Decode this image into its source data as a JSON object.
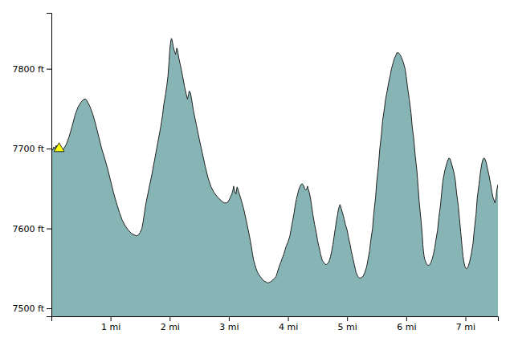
{
  "chart_data": {
    "type": "area",
    "xlim": [
      0,
      7.55
    ],
    "ylim": [
      7490,
      7870
    ],
    "xticks": [
      {
        "value": 1,
        "label": "1 mi"
      },
      {
        "value": 2,
        "label": "2 mi"
      },
      {
        "value": 3,
        "label": "3 mi"
      },
      {
        "value": 4,
        "label": "4 mi"
      },
      {
        "value": 5,
        "label": "5 mi"
      },
      {
        "value": 6,
        "label": "6 mi"
      },
      {
        "value": 7,
        "label": "7 mi"
      }
    ],
    "yticks": [
      {
        "value": 7500,
        "label": "7500 ft"
      },
      {
        "value": 7600,
        "label": "7600 ft"
      },
      {
        "value": 7700,
        "label": "7700 ft"
      },
      {
        "value": 7800,
        "label": "7800 ft"
      }
    ],
    "grid": false,
    "series": [
      {
        "type": "area",
        "color": "#87B5B5",
        "x": [
          0.0,
          0.02,
          0.04,
          0.06,
          0.08,
          0.1,
          0.12,
          0.13,
          0.15,
          0.17,
          0.2,
          0.25,
          0.3,
          0.35,
          0.4,
          0.45,
          0.5,
          0.55,
          0.58,
          0.6,
          0.65,
          0.7,
          0.75,
          0.8,
          0.85,
          0.9,
          0.95,
          1.0,
          1.05,
          1.1,
          1.15,
          1.2,
          1.25,
          1.3,
          1.35,
          1.4,
          1.43,
          1.45,
          1.47,
          1.5,
          1.53,
          1.55,
          1.57,
          1.6,
          1.65,
          1.7,
          1.75,
          1.8,
          1.85,
          1.88,
          1.9,
          1.93,
          1.95,
          1.97,
          1.98,
          1.99,
          2.0,
          2.01,
          2.02,
          2.03,
          2.04,
          2.05,
          2.06,
          2.07,
          2.08,
          2.09,
          2.1,
          2.11,
          2.12,
          2.13,
          2.14,
          2.15,
          2.17,
          2.2,
          2.22,
          2.25,
          2.28,
          2.3,
          2.32,
          2.33,
          2.35,
          2.37,
          2.4,
          2.45,
          2.5,
          2.55,
          2.6,
          2.65,
          2.7,
          2.75,
          2.8,
          2.83,
          2.85,
          2.87,
          2.9,
          2.93,
          2.95,
          2.97,
          3.0,
          3.02,
          3.05,
          3.07,
          3.08,
          3.09,
          3.1,
          3.12,
          3.13,
          3.14,
          3.15,
          3.17,
          3.2,
          3.25,
          3.3,
          3.35,
          3.38,
          3.4,
          3.42,
          3.44,
          3.46,
          3.48,
          3.5,
          3.53,
          3.55,
          3.57,
          3.6,
          3.63,
          3.65,
          3.67,
          3.7,
          3.72,
          3.75,
          3.78,
          3.8,
          3.82,
          3.85,
          3.88,
          3.9,
          3.93,
          3.95,
          3.97,
          4.0,
          4.03,
          4.05,
          4.07,
          4.1,
          4.12,
          4.14,
          4.16,
          4.18,
          4.2,
          4.22,
          4.24,
          4.25,
          4.27,
          4.28,
          4.3,
          4.32,
          4.33,
          4.34,
          4.36,
          4.38,
          4.4,
          4.42,
          4.45,
          4.48,
          4.5,
          4.52,
          4.54,
          4.55,
          4.57,
          4.58,
          4.6,
          4.62,
          4.63,
          4.65,
          4.67,
          4.69,
          4.7,
          4.72,
          4.74,
          4.76,
          4.78,
          4.8,
          4.82,
          4.84,
          4.85,
          4.87,
          4.88,
          4.89,
          4.9,
          4.92,
          4.95,
          4.97,
          5.0,
          5.02,
          5.05,
          5.07,
          5.1,
          5.12,
          5.14,
          5.15,
          5.17,
          5.18,
          5.19,
          5.2,
          5.21,
          5.22,
          5.23,
          5.25,
          5.27,
          5.3,
          5.33,
          5.35,
          5.38,
          5.4,
          5.43,
          5.45,
          5.48,
          5.5,
          5.53,
          5.55,
          5.58,
          5.6,
          5.63,
          5.65,
          5.68,
          5.7,
          5.73,
          5.75,
          5.78,
          5.8,
          5.82,
          5.83,
          5.84,
          5.85,
          5.86,
          5.87,
          5.88,
          5.89,
          5.9,
          5.92,
          5.95,
          5.98,
          6.0,
          6.02,
          6.05,
          6.08,
          6.1,
          6.13,
          6.15,
          6.18,
          6.2,
          6.22,
          6.25,
          6.27,
          6.28,
          6.29,
          6.3,
          6.31,
          6.32,
          6.33,
          6.34,
          6.35,
          6.36,
          6.37,
          6.38,
          6.39,
          6.4,
          6.42,
          6.44,
          6.46,
          6.48,
          6.5,
          6.53,
          6.55,
          6.58,
          6.6,
          6.62,
          6.65,
          6.68,
          6.7,
          6.72,
          6.73,
          6.74,
          6.75,
          6.77,
          6.8,
          6.83,
          6.85,
          6.88,
          6.9,
          6.92,
          6.94,
          6.95,
          6.96,
          6.97,
          6.98,
          6.99,
          7.0,
          7.01,
          7.02,
          7.03,
          7.04,
          7.05,
          7.07,
          7.1,
          7.13,
          7.15,
          7.18,
          7.2,
          7.23,
          7.25,
          7.27,
          7.28,
          7.29,
          7.3,
          7.31,
          7.32,
          7.33,
          7.35,
          7.37,
          7.4,
          7.43,
          7.45,
          7.47,
          7.5,
          7.52,
          7.53,
          7.55
        ],
        "values": [
          7700,
          7698,
          7702,
          7700,
          7704,
          7701,
          7705,
          7700,
          7703,
          7700,
          7699,
          7705,
          7715,
          7728,
          7742,
          7752,
          7758,
          7762,
          7762,
          7760,
          7753,
          7743,
          7730,
          7715,
          7700,
          7688,
          7675,
          7660,
          7645,
          7632,
          7620,
          7610,
          7603,
          7598,
          7594,
          7592,
          7591,
          7591,
          7592,
          7595,
          7600,
          7608,
          7618,
          7632,
          7650,
          7668,
          7688,
          7708,
          7728,
          7742,
          7755,
          7768,
          7778,
          7790,
          7800,
          7810,
          7822,
          7830,
          7835,
          7838,
          7836,
          7832,
          7828,
          7825,
          7822,
          7820,
          7818,
          7822,
          7826,
          7824,
          7820,
          7815,
          7808,
          7798,
          7790,
          7778,
          7768,
          7762,
          7768,
          7772,
          7770,
          7762,
          7748,
          7730,
          7712,
          7695,
          7678,
          7663,
          7652,
          7645,
          7640,
          7638,
          7636,
          7635,
          7633,
          7632,
          7632,
          7632,
          7635,
          7638,
          7643,
          7648,
          7653,
          7650,
          7646,
          7643,
          7648,
          7652,
          7650,
          7645,
          7638,
          7625,
          7608,
          7590,
          7578,
          7568,
          7560,
          7555,
          7550,
          7546,
          7543,
          7540,
          7538,
          7536,
          7534,
          7533,
          7532,
          7532,
          7533,
          7534,
          7536,
          7538,
          7540,
          7545,
          7552,
          7558,
          7562,
          7568,
          7573,
          7578,
          7583,
          7590,
          7598,
          7606,
          7618,
          7628,
          7636,
          7642,
          7648,
          7652,
          7655,
          7656,
          7655,
          7653,
          7650,
          7648,
          7650,
          7653,
          7650,
          7645,
          7638,
          7628,
          7618,
          7605,
          7594,
          7585,
          7578,
          7572,
          7568,
          7563,
          7560,
          7558,
          7556,
          7555,
          7555,
          7556,
          7558,
          7560,
          7565,
          7572,
          7580,
          7590,
          7600,
          7610,
          7618,
          7623,
          7628,
          7630,
          7628,
          7625,
          7620,
          7612,
          7605,
          7598,
          7590,
          7580,
          7572,
          7562,
          7555,
          7549,
          7545,
          7542,
          7540,
          7539,
          7538,
          7538,
          7538,
          7538,
          7539,
          7540,
          7545,
          7552,
          7560,
          7572,
          7585,
          7600,
          7618,
          7638,
          7658,
          7678,
          7698,
          7718,
          7735,
          7750,
          7762,
          7773,
          7782,
          7792,
          7800,
          7808,
          7813,
          7816,
          7818,
          7820,
          7820,
          7820,
          7820,
          7819,
          7818,
          7817,
          7814,
          7808,
          7800,
          7790,
          7778,
          7762,
          7745,
          7728,
          7710,
          7692,
          7672,
          7652,
          7632,
          7610,
          7592,
          7580,
          7572,
          7566,
          7562,
          7560,
          7558,
          7556,
          7555,
          7554,
          7554,
          7554,
          7554,
          7555,
          7558,
          7562,
          7568,
          7575,
          7585,
          7598,
          7613,
          7630,
          7646,
          7660,
          7672,
          7680,
          7685,
          7688,
          7688,
          7687,
          7685,
          7680,
          7672,
          7660,
          7645,
          7628,
          7612,
          7596,
          7580,
          7572,
          7565,
          7560,
          7556,
          7553,
          7551,
          7550,
          7550,
          7550,
          7551,
          7553,
          7558,
          7568,
          7582,
          7598,
          7618,
          7638,
          7655,
          7668,
          7678,
          7682,
          7685,
          7687,
          7688,
          7688,
          7687,
          7683,
          7676,
          7666,
          7654,
          7645,
          7638,
          7632,
          7640,
          7648,
          7655
        ]
      },
      {
        "type": "scatter",
        "color": "#FFFF00",
        "marker": "triangle",
        "x": [
          0.13
        ],
        "values": [
          7700
        ]
      }
    ]
  }
}
